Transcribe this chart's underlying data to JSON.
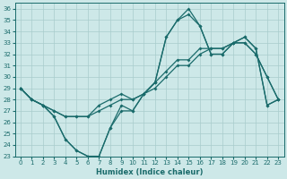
{
  "xlabel": "Humidex (Indice chaleur)",
  "bg_color": "#cde8e8",
  "line_color": "#1a6b6b",
  "grid_color": "#a8cccc",
  "xlim": [
    -0.5,
    23.5
  ],
  "ylim": [
    23,
    36.5
  ],
  "yticks": [
    23,
    24,
    25,
    26,
    27,
    28,
    29,
    30,
    31,
    32,
    33,
    34,
    35,
    36
  ],
  "xticks": [
    0,
    1,
    2,
    3,
    4,
    5,
    6,
    7,
    8,
    9,
    10,
    11,
    12,
    13,
    14,
    15,
    16,
    17,
    18,
    19,
    20,
    21,
    22,
    23
  ],
  "line1_x": [
    0,
    1,
    2,
    3,
    4,
    5,
    6,
    7,
    8,
    9,
    10,
    11,
    12,
    13,
    14,
    15,
    16,
    17,
    18,
    19,
    20,
    21,
    22,
    23
  ],
  "line1_y": [
    29.0,
    28.0,
    27.5,
    26.5,
    24.5,
    23.5,
    23.0,
    23.0,
    25.5,
    27.0,
    27.0,
    28.5,
    29.5,
    33.5,
    35.0,
    35.5,
    34.5,
    32.0,
    32.0,
    33.0,
    33.0,
    32.0,
    30.0,
    28.0
  ],
  "line2_x": [
    0,
    1,
    2,
    3,
    4,
    5,
    6,
    7,
    8,
    9,
    10,
    11,
    12,
    13,
    14,
    15,
    16,
    17,
    18,
    19,
    20,
    21,
    22,
    23
  ],
  "line2_y": [
    29.0,
    28.0,
    27.5,
    27.0,
    26.5,
    26.5,
    26.5,
    27.0,
    27.5,
    28.0,
    28.0,
    28.5,
    29.0,
    30.0,
    31.0,
    31.0,
    32.0,
    32.5,
    32.5,
    33.0,
    33.5,
    32.5,
    27.5,
    28.0
  ],
  "line3_x": [
    0,
    1,
    2,
    3,
    4,
    5,
    6,
    7,
    8,
    9,
    10,
    11,
    12,
    13,
    14,
    15,
    16,
    17,
    18,
    19,
    20,
    21,
    22,
    23
  ],
  "line3_y": [
    29.0,
    28.0,
    27.5,
    27.0,
    26.5,
    26.5,
    26.5,
    27.5,
    28.0,
    28.5,
    28.0,
    28.5,
    29.5,
    30.5,
    31.5,
    31.5,
    32.5,
    32.5,
    32.5,
    33.0,
    33.5,
    32.5,
    27.5,
    28.0
  ],
  "line4_x": [
    0,
    1,
    2,
    3,
    4,
    5,
    6,
    7,
    8,
    9,
    10,
    11,
    12,
    13,
    14,
    15,
    16,
    17,
    18,
    19,
    20,
    21,
    22,
    23
  ],
  "line4_y": [
    29.0,
    28.0,
    27.5,
    26.5,
    24.5,
    23.5,
    23.0,
    23.0,
    25.5,
    27.5,
    27.0,
    28.5,
    29.5,
    33.5,
    35.0,
    36.0,
    34.5,
    32.0,
    32.0,
    33.0,
    33.0,
    32.0,
    30.0,
    28.0
  ]
}
